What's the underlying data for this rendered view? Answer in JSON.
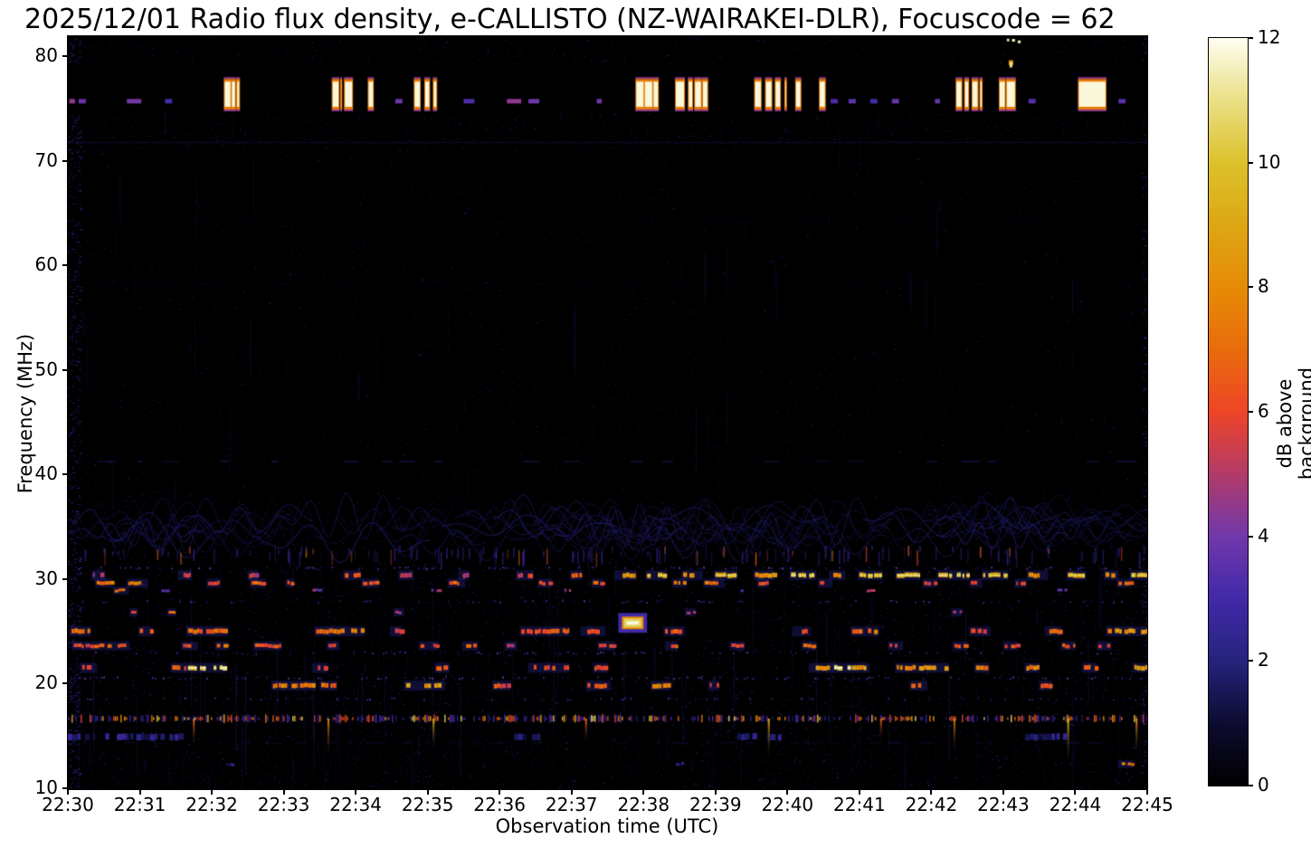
{
  "figure": {
    "title": "2025/12/01 Radio flux density, e-CALLISTO (NZ-WAIRAKEI-DLR), Focuscode = 62",
    "xlabel": "Observation time (UTC)",
    "ylabel": "Frequency (MHz)"
  },
  "chart_data": {
    "type": "heatmap",
    "title": "2025/12/01 Radio flux density, e-CALLISTO (NZ-WAIRAKEI-DLR), Focuscode = 62",
    "xlabel": "Observation time (UTC)",
    "ylabel": "Frequency (MHz)",
    "x_ticks": [
      "22:30",
      "22:31",
      "22:32",
      "22:33",
      "22:34",
      "22:35",
      "22:36",
      "22:37",
      "22:38",
      "22:39",
      "22:40",
      "22:41",
      "22:42",
      "22:43",
      "22:44",
      "22:45"
    ],
    "x_range_minutes": [
      0,
      15
    ],
    "y_ticks": [
      10,
      20,
      30,
      40,
      50,
      60,
      70,
      80
    ],
    "ylim": [
      9.9,
      81.9
    ],
    "grid": false,
    "colorbar": {
      "label": "dB above background",
      "ticks": [
        0,
        2,
        4,
        6,
        8,
        10,
        12
      ],
      "range": [
        0,
        12
      ],
      "colormap_stops": [
        [
          0,
          "#000000"
        ],
        [
          1,
          "#0d0c31"
        ],
        [
          2,
          "#25237c"
        ],
        [
          3,
          "#4229a8"
        ],
        [
          4,
          "#7038ab"
        ],
        [
          5,
          "#b23a68"
        ],
        [
          6,
          "#ee4527"
        ],
        [
          7,
          "#e96c0c"
        ],
        [
          8,
          "#e68b06"
        ],
        [
          9,
          "#dda714"
        ],
        [
          10,
          "#dcc12b"
        ],
        [
          11,
          "#eadf85"
        ],
        [
          12,
          "#fffef0"
        ]
      ]
    },
    "features": {
      "noise": {
        "speckle": 56000,
        "streaks": 330,
        "edge_boost": 900
      },
      "faint_lines": [
        {
          "f": 71.8,
          "v": 1.3,
          "a": 0.5,
          "dashed": false
        },
        {
          "f": 41.3,
          "v": 1.7,
          "a": 0.6,
          "dashed": true
        },
        {
          "f": 58.3,
          "v": 0.9,
          "a": 0.3,
          "dashed": false
        },
        {
          "f": 64.2,
          "v": 0.8,
          "a": 0.25,
          "dashed": false
        },
        {
          "f": 14.4,
          "v": 1.4,
          "a": 0.4,
          "dashed": true
        }
      ],
      "wave_pattern": {
        "freq_range": [
          32.3,
          37.5
        ],
        "filaments": 95,
        "legs": 160
      },
      "rfi_band": {
        "freq_range": [
          74.6,
          79.3
        ],
        "burst_freq_range": [
          75.15,
          77.55
        ],
        "bursts": [
          [
            0.02,
            0.1,
            "d"
          ],
          [
            0.15,
            0.25,
            "d"
          ],
          [
            0.82,
            1.02,
            "d"
          ],
          [
            1.35,
            1.45,
            "d"
          ],
          [
            2.18,
            2.26,
            "t"
          ],
          [
            2.28,
            2.38,
            "c"
          ],
          [
            3.68,
            3.8,
            "c"
          ],
          [
            3.85,
            3.95,
            "t"
          ],
          [
            4.18,
            4.24,
            "t"
          ],
          [
            4.55,
            4.65,
            "d"
          ],
          [
            4.82,
            5.12,
            "c"
          ],
          [
            5.5,
            5.65,
            "d"
          ],
          [
            6.1,
            6.3,
            "d"
          ],
          [
            6.4,
            6.55,
            "d"
          ],
          [
            7.35,
            7.42,
            "d"
          ],
          [
            7.9,
            8.0,
            "t"
          ],
          [
            8.02,
            8.12,
            "t"
          ],
          [
            8.14,
            8.2,
            "t"
          ],
          [
            8.45,
            8.92,
            "c"
          ],
          [
            9.55,
            9.98,
            "c"
          ],
          [
            10.12,
            10.18,
            "t"
          ],
          [
            10.45,
            10.52,
            "t"
          ],
          [
            10.6,
            10.7,
            "d"
          ],
          [
            10.85,
            10.95,
            "d"
          ],
          [
            11.15,
            11.25,
            "d"
          ],
          [
            11.45,
            11.55,
            "d"
          ],
          [
            12.05,
            12.12,
            "d"
          ],
          [
            12.35,
            12.7,
            "c"
          ],
          [
            12.95,
            13.02,
            "t"
          ],
          [
            13.05,
            13.18,
            "c"
          ],
          [
            13.35,
            13.45,
            "d"
          ],
          [
            14.05,
            14.42,
            "w"
          ],
          [
            14.6,
            14.7,
            "d"
          ]
        ],
        "spike_up": {
          "t": 13.1,
          "f_top": 79.6
        },
        "top_dots": [
          [
            13.05
          ],
          [
            13.12
          ],
          [
            13.2
          ]
        ]
      },
      "station_bands": [
        {
          "freq": 30.35,
          "h": 5,
          "segments": [
            [
              0.35,
              0.5,
              5
            ],
            [
              1.55,
              1.7,
              5.5
            ],
            [
              2.52,
              2.62,
              5
            ],
            [
              3.85,
              4.05,
              6
            ],
            [
              4.62,
              4.78,
              5.5
            ],
            [
              5.45,
              5.55,
              5
            ],
            [
              6.25,
              6.45,
              5.5
            ],
            [
              7.0,
              7.12,
              6
            ],
            [
              7.62,
              7.88,
              8.5
            ],
            [
              8.05,
              8.3,
              9
            ],
            [
              8.55,
              8.8,
              8.5
            ],
            [
              9.0,
              9.28,
              9
            ],
            [
              9.55,
              9.8,
              8.5
            ],
            [
              10.05,
              10.38,
              9.5
            ],
            [
              10.6,
              10.78,
              8
            ],
            [
              11.0,
              11.3,
              9
            ],
            [
              11.52,
              11.82,
              9.5
            ],
            [
              12.1,
              12.5,
              9.5
            ],
            [
              12.72,
              13.05,
              9
            ],
            [
              13.35,
              13.6,
              8.5
            ],
            [
              13.9,
              14.12,
              9
            ],
            [
              14.42,
              14.58,
              8
            ],
            [
              14.78,
              15.0,
              9
            ]
          ]
        },
        {
          "freq": 29.6,
          "h": 4,
          "segments": [
            [
              0.4,
              0.6,
              7
            ],
            [
              0.84,
              1.09,
              7.5
            ],
            [
              1.95,
              2.1,
              6
            ],
            [
              2.55,
              2.72,
              6.5
            ],
            [
              3.05,
              3.12,
              6
            ],
            [
              4.1,
              4.3,
              6
            ],
            [
              5.3,
              5.5,
              6.5
            ],
            [
              6.55,
              6.7,
              6
            ],
            [
              7.3,
              7.42,
              6.5
            ],
            [
              8.42,
              8.58,
              7
            ],
            [
              8.85,
              9.1,
              7
            ],
            [
              9.6,
              9.72,
              6
            ],
            [
              10.45,
              10.6,
              6.5
            ],
            [
              11.9,
              12.05,
              6
            ],
            [
              12.55,
              12.68,
              6.5
            ],
            [
              13.18,
              13.3,
              6
            ],
            [
              14.6,
              14.75,
              6.5
            ]
          ]
        },
        {
          "freq": 28.9,
          "h": 3,
          "segments": [
            [
              0.65,
              0.82,
              7.5
            ],
            [
              1.3,
              1.4,
              4
            ],
            [
              2.3,
              2.4,
              4.5
            ],
            [
              3.4,
              3.5,
              4
            ],
            [
              5.05,
              5.15,
              4
            ],
            [
              6.9,
              7.0,
              4.5
            ],
            [
              9.35,
              9.45,
              4
            ],
            [
              11.1,
              11.2,
              4.5
            ],
            [
              13.75,
              13.85,
              4
            ]
          ]
        },
        {
          "freq": 26.8,
          "h": 3,
          "segments": [
            [
              0.88,
              0.95,
              6
            ],
            [
              1.4,
              1.48,
              6.5
            ],
            [
              4.55,
              4.65,
              5
            ],
            [
              8.6,
              8.7,
              5.5
            ],
            [
              12.3,
              12.4,
              5
            ]
          ]
        },
        {
          "freq": 25.0,
          "h": 5,
          "segments": [
            [
              0.05,
              0.3,
              7.5
            ],
            [
              1.0,
              1.15,
              6
            ],
            [
              1.67,
              2.2,
              6.5
            ],
            [
              3.45,
              4.1,
              7
            ],
            [
              4.5,
              4.62,
              6
            ],
            [
              6.3,
              6.95,
              6.5
            ],
            [
              7.15,
              7.45,
              6
            ],
            [
              8.3,
              8.55,
              6.5
            ],
            [
              10.1,
              10.3,
              6
            ],
            [
              10.9,
              11.25,
              7
            ],
            [
              12.55,
              12.8,
              6
            ],
            [
              13.6,
              13.78,
              6.5
            ],
            [
              14.45,
              15.0,
              8
            ]
          ]
        },
        {
          "freq": 23.6,
          "h": 4,
          "segments": [
            [
              0.08,
              0.5,
              6
            ],
            [
              0.55,
              0.84,
              6.5
            ],
            [
              1.6,
              1.78,
              6
            ],
            [
              2.07,
              2.2,
              7.5
            ],
            [
              2.6,
              2.95,
              6
            ],
            [
              3.62,
              3.75,
              5.5
            ],
            [
              4.9,
              5.12,
              6
            ],
            [
              5.5,
              5.68,
              6.5
            ],
            [
              6.1,
              6.22,
              5.5
            ],
            [
              7.38,
              7.58,
              6
            ],
            [
              8.32,
              8.45,
              6.5
            ],
            [
              9.22,
              9.38,
              6
            ],
            [
              10.22,
              10.38,
              6.5
            ],
            [
              11.42,
              11.58,
              6
            ],
            [
              12.32,
              12.48,
              6.5
            ],
            [
              13.02,
              13.18,
              6
            ],
            [
              13.82,
              13.98,
              6.5
            ],
            [
              14.32,
              14.48,
              6
            ]
          ]
        },
        {
          "freq": 21.5,
          "h": 5,
          "segments": [
            [
              0.2,
              0.38,
              6
            ],
            [
              1.45,
              1.62,
              6.5
            ],
            [
              1.67,
              2.18,
              10
            ],
            [
              3.42,
              3.58,
              6
            ],
            [
              5.12,
              5.28,
              6.5
            ],
            [
              6.42,
              6.95,
              6
            ],
            [
              7.32,
              7.48,
              6.5
            ],
            [
              10.32,
              10.62,
              8.5
            ],
            [
              10.65,
              10.85,
              10.5
            ],
            [
              10.9,
              11.12,
              8.5
            ],
            [
              11.52,
              12.22,
              8
            ],
            [
              12.62,
              12.78,
              7
            ],
            [
              13.32,
              13.48,
              7.5
            ],
            [
              14.12,
              14.28,
              7
            ],
            [
              14.82,
              15.0,
              8.5
            ]
          ]
        },
        {
          "freq": 19.8,
          "h": 5,
          "segments": [
            [
              2.85,
              3.42,
              7.5
            ],
            [
              3.52,
              3.72,
              6.5
            ],
            [
              4.7,
              5.22,
              8.5
            ],
            [
              5.92,
              6.12,
              6
            ],
            [
              7.22,
              7.52,
              6.5
            ],
            [
              8.12,
              8.35,
              8
            ],
            [
              8.92,
              9.02,
              6
            ],
            [
              11.72,
              11.92,
              6.5
            ],
            [
              13.52,
              13.65,
              6
            ]
          ]
        },
        {
          "freq": 14.9,
          "h": 7,
          "segments": [
            [
              0.0,
              0.9,
              2
            ],
            [
              0.95,
              1.6,
              1.8
            ],
            [
              6.2,
              6.6,
              1.5
            ],
            [
              9.3,
              9.9,
              2
            ],
            [
              13.3,
              13.85,
              1.8
            ]
          ]
        },
        {
          "freq": 12.3,
          "h": 3,
          "segments": [
            [
              2.2,
              2.35,
              2
            ],
            [
              8.35,
              8.55,
              2
            ],
            [
              14.62,
              14.78,
              7.5
            ]
          ]
        }
      ],
      "dotted_rows": [
        {
          "f": 31.1,
          "density": 0.25,
          "vmax": 3.5
        },
        {
          "f": 27.9,
          "density": 0.15,
          "vmax": 3
        },
        {
          "f": 23.0,
          "density": 0.2,
          "vmax": 3
        },
        {
          "f": 20.6,
          "density": 0.3,
          "vmax": 3.5
        },
        {
          "f": 18.6,
          "density": 0.2,
          "vmax": 3
        }
      ],
      "blob": {
        "t0": 7.7,
        "t1": 8.0,
        "f0": 25.2,
        "f1": 26.4,
        "v": 10.5
      },
      "dense_row": {
        "freq": 16.65,
        "density": 0.62,
        "spikes": [
          {
            "t": 1.75,
            "f": 13.8,
            "v": 7
          },
          {
            "t": 3.62,
            "f": 12.9,
            "v": 8
          },
          {
            "t": 5.08,
            "f": 13.5,
            "v": 9.5
          },
          {
            "t": 7.2,
            "f": 14.2,
            "v": 7
          },
          {
            "t": 9.74,
            "f": 12.6,
            "v": 9
          },
          {
            "t": 11.3,
            "f": 14.5,
            "v": 6.5
          },
          {
            "t": 12.32,
            "f": 13.2,
            "v": 7.5
          },
          {
            "t": 13.9,
            "f": 12.2,
            "v": 9.5
          },
          {
            "t": 14.85,
            "f": 13.0,
            "v": 8
          }
        ]
      }
    }
  }
}
